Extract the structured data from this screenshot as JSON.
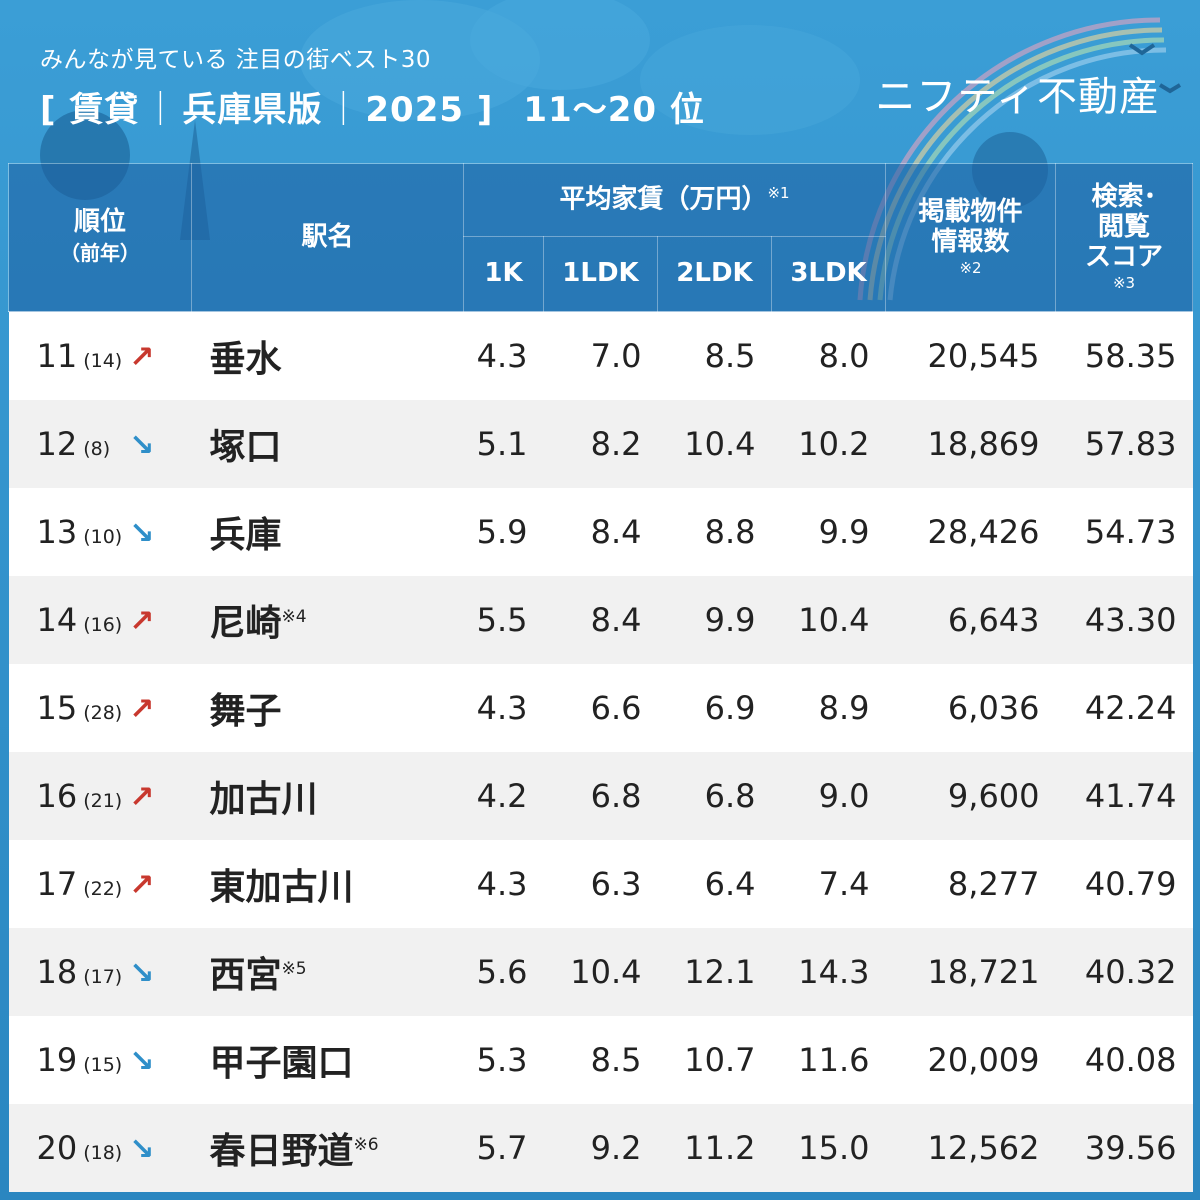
{
  "header": {
    "subtitle": "みんなが見ている 注目の街ベスト30",
    "title_open": "[ 賃貸",
    "sep1": "｜",
    "title_pref": "兵庫県版",
    "sep2": "｜",
    "title_year": "2025 ]",
    "title_range": "11〜20 位",
    "logo": "ニフティ不動産"
  },
  "table": {
    "col_rank": "順位",
    "col_rank_sub": "（前年）",
    "col_station": "駅名",
    "col_rent": "平均家賃（万円）",
    "col_rent_note": "※1",
    "col_1k": "1K",
    "col_1ldk": "1LDK",
    "col_2ldk": "2LDK",
    "col_3ldk": "3LDK",
    "col_listings_l1": "掲載物件",
    "col_listings_l2": "情報数",
    "col_listings_note": "※2",
    "col_score_l1": "検索･",
    "col_score_l2": "閲覧",
    "col_score_l3": "スコア",
    "col_score_note": "※3",
    "rows": [
      {
        "rank": "11",
        "prev": "(14)",
        "arrow": "↗",
        "trend": "up",
        "station": "垂水",
        "note": "",
        "k1": "4.3",
        "ldk1": "7.0",
        "ldk2": "8.5",
        "ldk3": "8.0",
        "listings": "20,545",
        "score": "58.35"
      },
      {
        "rank": "12",
        "prev": "(8)",
        "arrow": "↘",
        "trend": "down",
        "station": "塚口",
        "note": "",
        "k1": "5.1",
        "ldk1": "8.2",
        "ldk2": "10.4",
        "ldk3": "10.2",
        "listings": "18,869",
        "score": "57.83"
      },
      {
        "rank": "13",
        "prev": "(10)",
        "arrow": "↘",
        "trend": "down",
        "station": "兵庫",
        "note": "",
        "k1": "5.9",
        "ldk1": "8.4",
        "ldk2": "8.8",
        "ldk3": "9.9",
        "listings": "28,426",
        "score": "54.73"
      },
      {
        "rank": "14",
        "prev": "(16)",
        "arrow": "↗",
        "trend": "up",
        "station": "尼崎",
        "note": "※4",
        "k1": "5.5",
        "ldk1": "8.4",
        "ldk2": "9.9",
        "ldk3": "10.4",
        "listings": "6,643",
        "score": "43.30"
      },
      {
        "rank": "15",
        "prev": "(28)",
        "arrow": "↗",
        "trend": "up",
        "station": "舞子",
        "note": "",
        "k1": "4.3",
        "ldk1": "6.6",
        "ldk2": "6.9",
        "ldk3": "8.9",
        "listings": "6,036",
        "score": "42.24"
      },
      {
        "rank": "16",
        "prev": "(21)",
        "arrow": "↗",
        "trend": "up",
        "station": "加古川",
        "note": "",
        "k1": "4.2",
        "ldk1": "6.8",
        "ldk2": "6.8",
        "ldk3": "9.0",
        "listings": "9,600",
        "score": "41.74"
      },
      {
        "rank": "17",
        "prev": "(22)",
        "arrow": "↗",
        "trend": "up",
        "station": "東加古川",
        "note": "",
        "k1": "4.3",
        "ldk1": "6.3",
        "ldk2": "6.4",
        "ldk3": "7.4",
        "listings": "8,277",
        "score": "40.79"
      },
      {
        "rank": "18",
        "prev": "(17)",
        "arrow": "↘",
        "trend": "down",
        "station": "西宮",
        "note": "※5",
        "k1": "5.6",
        "ldk1": "10.4",
        "ldk2": "12.1",
        "ldk3": "14.3",
        "listings": "18,721",
        "score": "40.32"
      },
      {
        "rank": "19",
        "prev": "(15)",
        "arrow": "↘",
        "trend": "down",
        "station": "甲子園口",
        "note": "",
        "k1": "5.3",
        "ldk1": "8.5",
        "ldk2": "10.7",
        "ldk3": "11.6",
        "listings": "20,009",
        "score": "40.08"
      },
      {
        "rank": "20",
        "prev": "(18)",
        "arrow": "↘",
        "trend": "down",
        "station": "春日野道",
        "note": "※6",
        "k1": "5.7",
        "ldk1": "9.2",
        "ldk2": "11.2",
        "ldk3": "15.0",
        "listings": "12,562",
        "score": "39.56"
      }
    ]
  }
}
